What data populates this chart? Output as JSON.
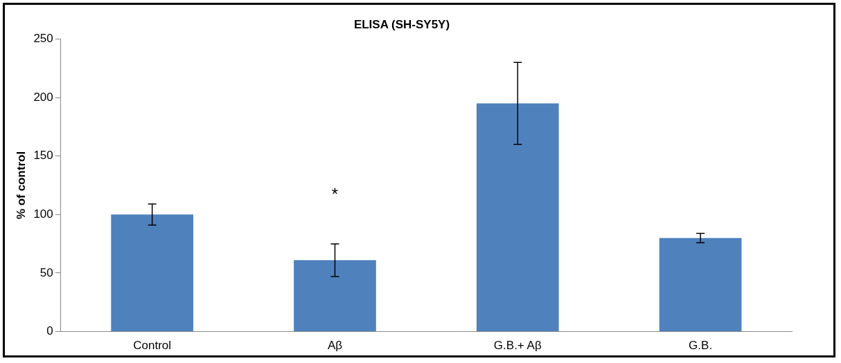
{
  "chart_data": {
    "type": "bar",
    "title": "ELISA (SH-SY5Y)",
    "ylabel": "% of control",
    "categories": [
      "Control",
      "Aβ",
      "G.B.+ Aβ",
      "G.B."
    ],
    "values": [
      100,
      61,
      195,
      80
    ],
    "errors": [
      9,
      14,
      35,
      4
    ],
    "color": "#4f81bd",
    "ylim": [
      0,
      250
    ],
    "yticks": [
      0,
      50,
      100,
      150,
      200,
      250
    ],
    "grid": false,
    "legend": false,
    "annotations": [
      "*"
    ]
  }
}
